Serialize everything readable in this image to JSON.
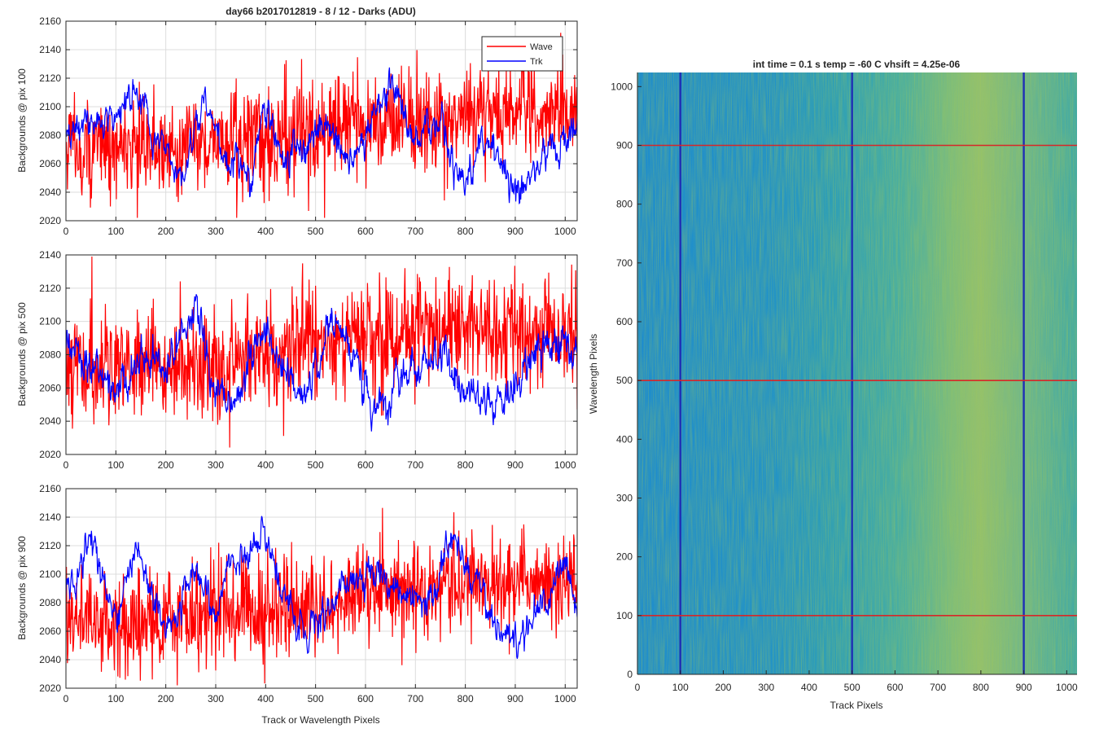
{
  "figure": {
    "title": "day66 b2017012819 - 8 / 12 - Darks (ADU)",
    "colors": {
      "wave": "#ff0000",
      "trk": "#0000ff",
      "axis": "#262626",
      "grid": "#dcdcdc",
      "marker_h": "#d62728",
      "marker_v": "#1f2fb5",
      "bg_low": "#1a8fc9",
      "bg_high": "#c9c65a"
    }
  },
  "chart_data": [
    {
      "type": "line",
      "id": "p1",
      "title": "day66 b2017012819 - 8 / 12 - Darks (ADU)",
      "xlabel": "",
      "ylabel": "Backgrounds @ pix 100",
      "xlim": [
        0,
        1024
      ],
      "ylim": [
        2020,
        2160
      ],
      "xticks": [
        0,
        100,
        200,
        300,
        400,
        500,
        600,
        700,
        800,
        900,
        1000
      ],
      "yticks": [
        2020,
        2040,
        2060,
        2080,
        2100,
        2120,
        2140,
        2160
      ],
      "grid": true,
      "legend": {
        "position": "top-right",
        "entries": [
          "Wave",
          "Trk"
        ]
      },
      "series": [
        {
          "name": "Wave",
          "color": "#ff0000",
          "noise": 18,
          "trend": [
            [
              0,
              2072
            ],
            [
              100,
              2070
            ],
            [
              200,
              2072
            ],
            [
              300,
              2075
            ],
            [
              400,
              2078
            ],
            [
              500,
              2082
            ],
            [
              600,
              2088
            ],
            [
              700,
              2092
            ],
            [
              800,
              2095
            ],
            [
              900,
              2095
            ],
            [
              1024,
              2095
            ]
          ]
        },
        {
          "name": "Trk",
          "color": "#0000ff",
          "noise": 5,
          "trend": [
            [
              0,
              2083
            ],
            [
              40,
              2088
            ],
            [
              80,
              2090
            ],
            [
              140,
              2108
            ],
            [
              180,
              2080
            ],
            [
              230,
              2050
            ],
            [
              280,
              2105
            ],
            [
              330,
              2060
            ],
            [
              370,
              2050
            ],
            [
              400,
              2100
            ],
            [
              440,
              2060
            ],
            [
              470,
              2070
            ],
            [
              520,
              2090
            ],
            [
              560,
              2060
            ],
            [
              650,
              2110
            ],
            [
              700,
              2078
            ],
            [
              740,
              2090
            ],
            [
              780,
              2060
            ],
            [
              800,
              2045
            ],
            [
              840,
              2075
            ],
            [
              900,
              2045
            ],
            [
              960,
              2065
            ],
            [
              1024,
              2080
            ]
          ]
        }
      ]
    },
    {
      "type": "line",
      "id": "p2",
      "title": "",
      "xlabel": "",
      "ylabel": "Backgrounds @ pix 500",
      "xlim": [
        0,
        1024
      ],
      "ylim": [
        2020,
        2140
      ],
      "xticks": [
        0,
        100,
        200,
        300,
        400,
        500,
        600,
        700,
        800,
        900,
        1000
      ],
      "yticks": [
        2020,
        2040,
        2060,
        2080,
        2100,
        2120,
        2140
      ],
      "grid": true,
      "series": [
        {
          "name": "Wave",
          "color": "#ff0000",
          "noise": 17,
          "trend": [
            [
              0,
              2070
            ],
            [
              100,
              2072
            ],
            [
              200,
              2075
            ],
            [
              300,
              2075
            ],
            [
              400,
              2080
            ],
            [
              500,
              2085
            ],
            [
              600,
              2090
            ],
            [
              700,
              2095
            ],
            [
              800,
              2095
            ],
            [
              900,
              2094
            ],
            [
              1024,
              2092
            ]
          ]
        },
        {
          "name": "Trk",
          "color": "#0000ff",
          "noise": 5,
          "trend": [
            [
              0,
              2085
            ],
            [
              50,
              2070
            ],
            [
              100,
              2055
            ],
            [
              150,
              2080
            ],
            [
              200,
              2070
            ],
            [
              260,
              2105
            ],
            [
              300,
              2060
            ],
            [
              330,
              2050
            ],
            [
              400,
              2098
            ],
            [
              440,
              2068
            ],
            [
              470,
              2055
            ],
            [
              540,
              2100
            ],
            [
              580,
              2075
            ],
            [
              620,
              2045
            ],
            [
              700,
              2070
            ],
            [
              760,
              2080
            ],
            [
              800,
              2055
            ],
            [
              880,
              2050
            ],
            [
              940,
              2085
            ],
            [
              1024,
              2085
            ]
          ]
        }
      ]
    },
    {
      "type": "line",
      "id": "p3",
      "title": "",
      "xlabel": "Track or Wavelength Pixels",
      "ylabel": "Backgrounds @ pix 900",
      "xlim": [
        0,
        1024
      ],
      "ylim": [
        2020,
        2160
      ],
      "xticks": [
        0,
        100,
        200,
        300,
        400,
        500,
        600,
        700,
        800,
        900,
        1000
      ],
      "yticks": [
        2020,
        2040,
        2060,
        2080,
        2100,
        2120,
        2140,
        2160
      ],
      "grid": true,
      "series": [
        {
          "name": "Wave",
          "color": "#ff0000",
          "noise": 17,
          "trend": [
            [
              0,
              2068
            ],
            [
              100,
              2065
            ],
            [
              200,
              2068
            ],
            [
              300,
              2072
            ],
            [
              400,
              2075
            ],
            [
              500,
              2078
            ],
            [
              600,
              2085
            ],
            [
              700,
              2092
            ],
            [
              800,
              2095
            ],
            [
              900,
              2095
            ],
            [
              1024,
              2095
            ]
          ]
        },
        {
          "name": "Trk",
          "color": "#0000ff",
          "noise": 5,
          "trend": [
            [
              0,
              2085
            ],
            [
              50,
              2120
            ],
            [
              100,
              2072
            ],
            [
              140,
              2115
            ],
            [
              200,
              2060
            ],
            [
              260,
              2100
            ],
            [
              300,
              2070
            ],
            [
              330,
              2110
            ],
            [
              400,
              2128
            ],
            [
              430,
              2090
            ],
            [
              470,
              2060
            ],
            [
              520,
              2070
            ],
            [
              560,
              2095
            ],
            [
              620,
              2100
            ],
            [
              680,
              2085
            ],
            [
              720,
              2080
            ],
            [
              780,
              2125
            ],
            [
              820,
              2095
            ],
            [
              870,
              2060
            ],
            [
              900,
              2052
            ],
            [
              960,
              2080
            ],
            [
              1000,
              2110
            ],
            [
              1024,
              2075
            ]
          ]
        }
      ]
    },
    {
      "type": "heatmap",
      "id": "img",
      "title": "int time = 0.1 s   temp = -60 C   vhsift = 4.25e-06",
      "xlabel": "Track Pixels",
      "ylabel": "Wavelength Pixels",
      "xlim": [
        0,
        1024
      ],
      "ylim": [
        0,
        1024
      ],
      "xticks": [
        0,
        100,
        200,
        300,
        400,
        500,
        600,
        700,
        800,
        900,
        1000
      ],
      "yticks": [
        0,
        100,
        200,
        300,
        400,
        500,
        600,
        700,
        800,
        900,
        1000
      ],
      "grid": false,
      "colormap": "parula",
      "marker_rows": [
        100,
        500,
        900
      ],
      "marker_cols": [
        100,
        500,
        900
      ]
    }
  ]
}
